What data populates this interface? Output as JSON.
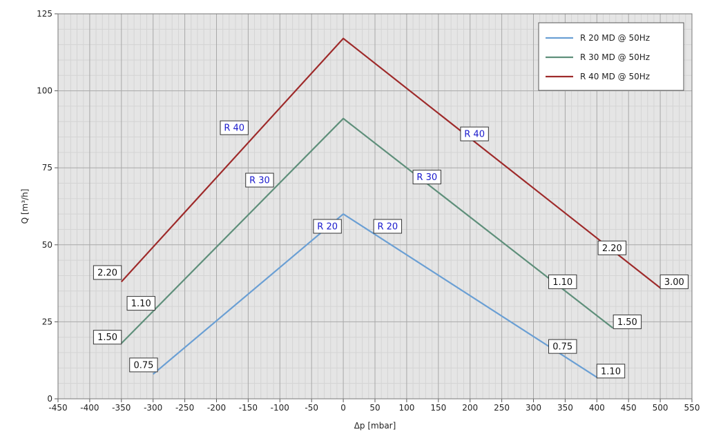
{
  "chart_data": {
    "type": "line",
    "xlabel": "Δp [mbar]",
    "ylabel": "Q [m³/h]",
    "xlim": [
      -450,
      550
    ],
    "ylim": [
      0,
      125
    ],
    "x_ticks": [
      "-450",
      "-400",
      "-350",
      "-300",
      "-250",
      "-200",
      "-150",
      "-100",
      "-50",
      "0",
      "50",
      "100",
      "150",
      "200",
      "250",
      "300",
      "350",
      "400",
      "450",
      "500",
      "550"
    ],
    "y_ticks": [
      "0",
      "25",
      "50",
      "75",
      "100",
      "125"
    ],
    "grid": true,
    "legend_position": "top-right",
    "series": [
      {
        "name": "R 20 MD @ 50Hz",
        "color": "#6a9fd4",
        "points": [
          [
            -300,
            8
          ],
          [
            0,
            60
          ],
          [
            400,
            7
          ]
        ]
      },
      {
        "name": "R 30 MD @ 50Hz",
        "color": "#5e8f7a",
        "points": [
          [
            -350,
            18
          ],
          [
            0,
            91
          ],
          [
            425,
            23
          ]
        ]
      },
      {
        "name": "R 40 MD @ 50Hz",
        "color": "#9e2a2a",
        "points": [
          [
            -350,
            38
          ],
          [
            0,
            117
          ],
          [
            500,
            36
          ]
        ]
      }
    ],
    "series_labels": [
      {
        "text": "R 20",
        "x": -25,
        "y": 56,
        "color": "#1a1acc"
      },
      {
        "text": "R 20",
        "x": 70,
        "y": 56,
        "color": "#1a1acc"
      },
      {
        "text": "R 30",
        "x": -132,
        "y": 71,
        "color": "#1a1acc"
      },
      {
        "text": "R 30",
        "x": 132,
        "y": 72,
        "color": "#1a1acc"
      },
      {
        "text": "R 40",
        "x": -172,
        "y": 88,
        "color": "#1a1acc"
      },
      {
        "text": "R 40",
        "x": 207,
        "y": 86,
        "color": "#1a1acc"
      }
    ],
    "point_labels": [
      {
        "text": "0.75",
        "x": -315,
        "y": 11
      },
      {
        "text": "1.50",
        "x": -372,
        "y": 20
      },
      {
        "text": "1.10",
        "x": -319,
        "y": 31
      },
      {
        "text": "2.20",
        "x": -372,
        "y": 41
      },
      {
        "text": "1.10",
        "x": 346,
        "y": 38
      },
      {
        "text": "0.75",
        "x": 346,
        "y": 17
      },
      {
        "text": "1.50",
        "x": 448,
        "y": 25
      },
      {
        "text": "1.10",
        "x": 422,
        "y": 9
      },
      {
        "text": "2.20",
        "x": 424,
        "y": 49
      },
      {
        "text": "3.00",
        "x": 522,
        "y": 38
      }
    ]
  }
}
